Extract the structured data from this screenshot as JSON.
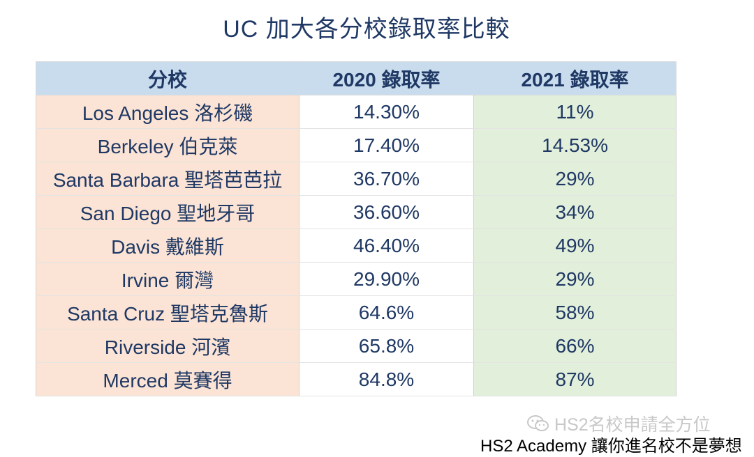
{
  "title": "UC 加大各分校錄取率比較",
  "table": {
    "headers": [
      "分校",
      "2020 錄取率",
      "2021 錄取率"
    ],
    "rows": [
      {
        "campus": "Los Angeles 洛杉磯",
        "rate_2020": "14.30%",
        "rate_2021": "11%"
      },
      {
        "campus": "Berkeley 伯克萊",
        "rate_2020": "17.40%",
        "rate_2021": "14.53%"
      },
      {
        "campus": "Santa Barbara 聖塔芭芭拉",
        "rate_2020": "36.70%",
        "rate_2021": "29%"
      },
      {
        "campus": "San Diego 聖地牙哥",
        "rate_2020": "36.60%",
        "rate_2021": "34%"
      },
      {
        "campus": "Davis 戴維斯",
        "rate_2020": "46.40%",
        "rate_2021": "49%"
      },
      {
        "campus": "Irvine 爾灣",
        "rate_2020": "29.90%",
        "rate_2021": "29%"
      },
      {
        "campus": "Santa Cruz 聖塔克魯斯",
        "rate_2020": "64.6%",
        "rate_2021": "58%"
      },
      {
        "campus": "Riverside 河濱",
        "rate_2020": "65.8%",
        "rate_2021": "66%"
      },
      {
        "campus": "Merced 莫賽得",
        "rate_2020": "84.8%",
        "rate_2021": "87%"
      }
    ]
  },
  "watermark": {
    "text": "HS2名校申請全方位",
    "icon": "wechat-icon"
  },
  "footer": {
    "text": "HS2 Academy 讓你進名校不是夢想"
  }
}
